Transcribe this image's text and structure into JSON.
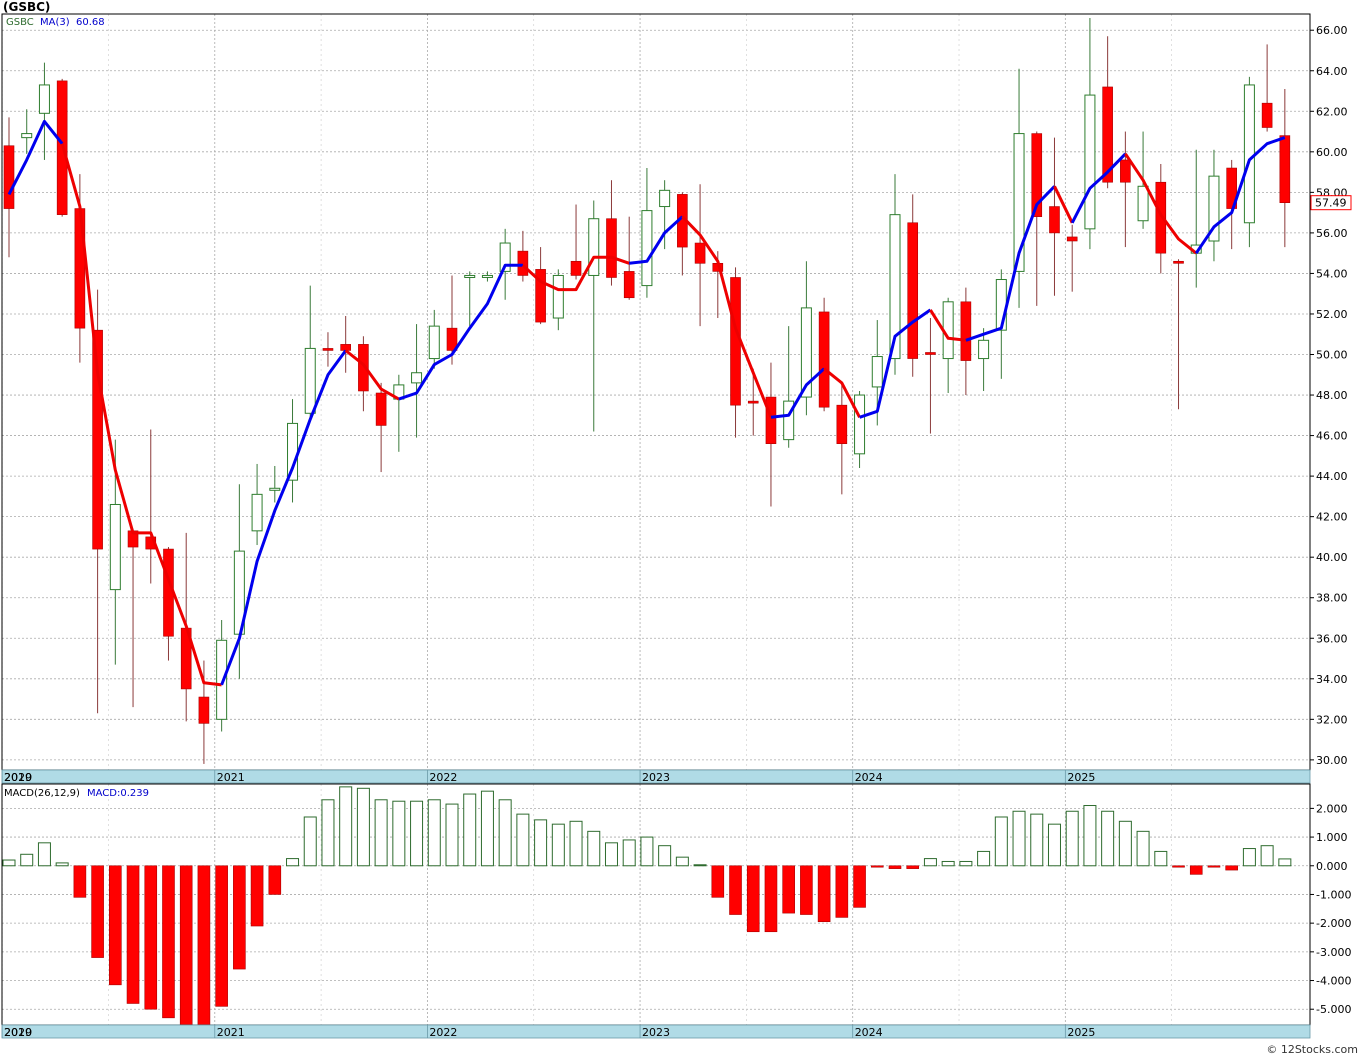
{
  "title": "(GSBC)",
  "credit": "© 12Stocks.com",
  "colors": {
    "up_candle": "#2e7d2e",
    "down_candle": "#ff0000",
    "ma_up": "#0000ee",
    "ma_down": "#ee0000",
    "hist_pos": "#2e6b2e",
    "hist_neg": "#ff0000",
    "axis_bar": "#b0dbe6",
    "grid": "#aaaaaa",
    "price_box": "#ff0000"
  },
  "chart_data": [
    {
      "type": "candlestick",
      "symbol_label": "GSBC",
      "ma_label": "MA(3)",
      "ma_value": "60.68",
      "last_price": "57.49",
      "timeframe": "monthly",
      "ylim": [
        29.5,
        66.8
      ],
      "y_ticks": [
        "66.00",
        "64.00",
        "62.00",
        "60.00",
        "58.00",
        "56.00",
        "54.00",
        "52.00",
        "50.00",
        "48.00",
        "46.00",
        "44.00",
        "42.00",
        "40.00",
        "38.00",
        "36.00",
        "34.00",
        "32.00",
        "30.00"
      ],
      "x_labels": [
        "2019",
        "2020",
        "2021",
        "2022",
        "2023",
        "2024",
        "2025"
      ],
      "x_label_index": [
        -4.5,
        0,
        12,
        24,
        36,
        48,
        60
      ],
      "grid": true,
      "candles": [
        {
          "o": 60.3,
          "h": 61.7,
          "l": 54.8,
          "c": 57.2
        },
        {
          "o": 60.7,
          "h": 62.1,
          "l": 59.9,
          "c": 60.9
        },
        {
          "o": 61.9,
          "h": 64.4,
          "l": 59.6,
          "c": 63.3
        },
        {
          "o": 63.5,
          "h": 63.6,
          "l": 56.8,
          "c": 56.9
        },
        {
          "o": 57.2,
          "h": 58.9,
          "l": 49.6,
          "c": 51.3
        },
        {
          "o": 51.2,
          "h": 53.2,
          "l": 32.3,
          "c": 40.4
        },
        {
          "o": 38.4,
          "h": 45.8,
          "l": 34.7,
          "c": 42.6
        },
        {
          "o": 41.3,
          "h": 41.4,
          "l": 32.6,
          "c": 40.5
        },
        {
          "o": 41.0,
          "h": 46.3,
          "l": 38.7,
          "c": 40.4
        },
        {
          "o": 40.4,
          "h": 40.5,
          "l": 34.9,
          "c": 36.1
        },
        {
          "o": 36.5,
          "h": 41.2,
          "l": 31.9,
          "c": 33.5
        },
        {
          "o": 33.1,
          "h": 34.9,
          "l": 29.8,
          "c": 31.8
        },
        {
          "o": 32.0,
          "h": 36.9,
          "l": 31.4,
          "c": 35.9
        },
        {
          "o": 36.2,
          "h": 43.6,
          "l": 34.0,
          "c": 40.3
        },
        {
          "o": 41.3,
          "h": 44.6,
          "l": 40.6,
          "c": 43.1
        },
        {
          "o": 43.3,
          "h": 44.5,
          "l": 42.7,
          "c": 43.4
        },
        {
          "o": 43.8,
          "h": 47.8,
          "l": 42.7,
          "c": 46.6
        },
        {
          "o": 47.1,
          "h": 53.4,
          "l": 46.8,
          "c": 50.3
        },
        {
          "o": 50.3,
          "h": 51.1,
          "l": 49.4,
          "c": 50.2
        },
        {
          "o": 50.5,
          "h": 51.9,
          "l": 49.1,
          "c": 50.2
        },
        {
          "o": 50.5,
          "h": 50.9,
          "l": 47.2,
          "c": 48.2
        },
        {
          "o": 48.1,
          "h": 48.6,
          "l": 44.2,
          "c": 46.5
        },
        {
          "o": 47.8,
          "h": 49.0,
          "l": 45.2,
          "c": 48.5
        },
        {
          "o": 48.6,
          "h": 51.5,
          "l": 45.9,
          "c": 49.1
        },
        {
          "o": 49.8,
          "h": 52.2,
          "l": 49.3,
          "c": 51.4
        },
        {
          "o": 51.3,
          "h": 53.9,
          "l": 49.5,
          "c": 50.2
        },
        {
          "o": 53.8,
          "h": 54.1,
          "l": 51.4,
          "c": 53.9
        },
        {
          "o": 53.9,
          "h": 54.1,
          "l": 53.6,
          "c": 53.9
        },
        {
          "o": 54.1,
          "h": 56.2,
          "l": 52.7,
          "c": 55.5
        },
        {
          "o": 55.1,
          "h": 56.1,
          "l": 53.6,
          "c": 53.9
        },
        {
          "o": 54.2,
          "h": 55.3,
          "l": 51.5,
          "c": 51.6
        },
        {
          "o": 51.8,
          "h": 54.2,
          "l": 51.2,
          "c": 53.9
        },
        {
          "o": 54.6,
          "h": 57.4,
          "l": 53.7,
          "c": 53.9
        },
        {
          "o": 53.9,
          "h": 57.6,
          "l": 46.2,
          "c": 56.7
        },
        {
          "o": 56.7,
          "h": 58.6,
          "l": 53.4,
          "c": 53.8
        },
        {
          "o": 54.1,
          "h": 56.8,
          "l": 52.7,
          "c": 52.8
        },
        {
          "o": 53.4,
          "h": 59.2,
          "l": 52.8,
          "c": 57.1
        },
        {
          "o": 57.3,
          "h": 58.6,
          "l": 55.2,
          "c": 58.1
        },
        {
          "o": 57.9,
          "h": 58.0,
          "l": 53.9,
          "c": 55.3
        },
        {
          "o": 55.5,
          "h": 58.4,
          "l": 51.4,
          "c": 54.5
        },
        {
          "o": 54.5,
          "h": 55.1,
          "l": 51.8,
          "c": 54.1
        },
        {
          "o": 53.8,
          "h": 54.3,
          "l": 45.9,
          "c": 47.5
        },
        {
          "o": 47.7,
          "h": 49.3,
          "l": 46.0,
          "c": 47.6
        },
        {
          "o": 47.9,
          "h": 49.6,
          "l": 42.5,
          "c": 45.6
        },
        {
          "o": 45.8,
          "h": 51.4,
          "l": 45.4,
          "c": 47.7
        },
        {
          "o": 47.9,
          "h": 54.6,
          "l": 47.0,
          "c": 52.3
        },
        {
          "o": 52.1,
          "h": 52.8,
          "l": 47.2,
          "c": 47.4
        },
        {
          "o": 47.5,
          "h": 48.5,
          "l": 43.1,
          "c": 45.6
        },
        {
          "o": 45.1,
          "h": 48.2,
          "l": 44.4,
          "c": 48.0
        },
        {
          "o": 48.4,
          "h": 51.7,
          "l": 46.5,
          "c": 49.9
        },
        {
          "o": 49.8,
          "h": 58.9,
          "l": 49.0,
          "c": 56.9
        },
        {
          "o": 56.5,
          "h": 57.9,
          "l": 48.9,
          "c": 49.8
        },
        {
          "o": 50.1,
          "h": 51.8,
          "l": 46.1,
          "c": 50.0
        },
        {
          "o": 49.8,
          "h": 52.8,
          "l": 48.1,
          "c": 52.6
        },
        {
          "o": 52.6,
          "h": 53.3,
          "l": 48.0,
          "c": 49.7
        },
        {
          "o": 49.8,
          "h": 51.3,
          "l": 48.2,
          "c": 50.7
        },
        {
          "o": 51.2,
          "h": 54.2,
          "l": 48.8,
          "c": 53.7
        },
        {
          "o": 54.1,
          "h": 64.1,
          "l": 52.3,
          "c": 60.9
        },
        {
          "o": 60.9,
          "h": 61.0,
          "l": 52.4,
          "c": 56.8
        },
        {
          "o": 57.3,
          "h": 60.7,
          "l": 52.9,
          "c": 56.0
        },
        {
          "o": 55.8,
          "h": 56.4,
          "l": 53.1,
          "c": 55.6
        },
        {
          "o": 56.2,
          "h": 66.6,
          "l": 55.2,
          "c": 62.8
        },
        {
          "o": 63.2,
          "h": 65.7,
          "l": 58.2,
          "c": 58.5
        },
        {
          "o": 59.6,
          "h": 61.0,
          "l": 55.3,
          "c": 58.5
        },
        {
          "o": 56.6,
          "h": 61.0,
          "l": 56.2,
          "c": 58.3
        },
        {
          "o": 58.5,
          "h": 59.4,
          "l": 54.0,
          "c": 55.0
        },
        {
          "o": 54.6,
          "h": 54.7,
          "l": 47.3,
          "c": 54.5
        },
        {
          "o": 55.0,
          "h": 60.1,
          "l": 53.3,
          "c": 55.4
        },
        {
          "o": 55.6,
          "h": 60.1,
          "l": 54.6,
          "c": 58.8
        },
        {
          "o": 59.2,
          "h": 59.6,
          "l": 55.2,
          "c": 57.2
        },
        {
          "o": 56.5,
          "h": 63.7,
          "l": 55.3,
          "c": 63.3
        },
        {
          "o": 62.4,
          "h": 65.3,
          "l": 61.0,
          "c": 61.2
        },
        {
          "o": 60.8,
          "h": 63.1,
          "l": 55.3,
          "c": 57.49
        }
      ],
      "ma_segments": [
        {
          "color": "up",
          "points": [
            [
              0,
              57.9
            ],
            [
              1,
              59.6
            ],
            [
              2,
              61.5
            ],
            [
              3,
              60.4
            ]
          ]
        },
        {
          "color": "down",
          "points": [
            [
              3,
              60.4
            ],
            [
              4,
              57.3
            ],
            [
              5,
              49.1
            ],
            [
              6,
              44.3
            ],
            [
              7,
              41.2
            ],
            [
              8,
              41.2
            ],
            [
              9,
              38.9
            ],
            [
              10,
              36.6
            ],
            [
              11,
              33.8
            ],
            [
              12,
              33.7
            ]
          ]
        },
        {
          "color": "up",
          "points": [
            [
              12,
              33.7
            ],
            [
              13,
              36.0
            ],
            [
              14,
              39.8
            ],
            [
              15,
              42.3
            ],
            [
              16,
              44.4
            ],
            [
              17,
              46.8
            ],
            [
              18,
              49.0
            ],
            [
              19,
              50.2
            ]
          ]
        },
        {
          "color": "down",
          "points": [
            [
              19,
              50.2
            ],
            [
              20,
              49.5
            ],
            [
              21,
              48.3
            ],
            [
              22,
              47.8
            ]
          ]
        },
        {
          "color": "up",
          "points": [
            [
              22,
              47.8
            ],
            [
              23,
              48.1
            ],
            [
              24,
              49.5
            ],
            [
              25,
              50.0
            ],
            [
              26,
              51.3
            ],
            [
              27,
              52.5
            ],
            [
              28,
              54.4
            ],
            [
              29,
              54.4
            ]
          ]
        },
        {
          "color": "down",
          "points": [
            [
              29,
              54.4
            ],
            [
              30,
              53.6
            ],
            [
              31,
              53.2
            ],
            [
              32,
              53.2
            ],
            [
              33,
              54.8
            ],
            [
              34,
              54.8
            ],
            [
              35,
              54.5
            ]
          ]
        },
        {
          "color": "up",
          "points": [
            [
              35,
              54.5
            ],
            [
              36,
              54.6
            ],
            [
              37,
              56.0
            ],
            [
              38,
              56.8
            ]
          ]
        },
        {
          "color": "down",
          "points": [
            [
              38,
              56.8
            ],
            [
              39,
              55.9
            ],
            [
              40,
              54.6
            ],
            [
              41,
              51.3
            ],
            [
              42,
              49.1
            ],
            [
              43,
              46.9
            ]
          ]
        },
        {
          "color": "up",
          "points": [
            [
              43,
              46.9
            ],
            [
              44,
              47.0
            ],
            [
              45,
              48.5
            ],
            [
              46,
              49.3
            ]
          ]
        },
        {
          "color": "down",
          "points": [
            [
              46,
              49.3
            ],
            [
              47,
              48.6
            ],
            [
              48,
              46.9
            ]
          ]
        },
        {
          "color": "up",
          "points": [
            [
              48,
              46.9
            ],
            [
              49,
              47.2
            ],
            [
              50,
              50.9
            ],
            [
              51,
              51.6
            ],
            [
              52,
              52.2
            ]
          ]
        },
        {
          "color": "down",
          "points": [
            [
              52,
              52.2
            ],
            [
              53,
              50.8
            ],
            [
              54,
              50.7
            ]
          ]
        },
        {
          "color": "up",
          "points": [
            [
              54,
              50.7
            ],
            [
              55,
              51.0
            ],
            [
              56,
              51.3
            ],
            [
              57,
              55.0
            ],
            [
              58,
              57.4
            ],
            [
              59,
              58.3
            ]
          ]
        },
        {
          "color": "down",
          "points": [
            [
              59,
              58.3
            ],
            [
              60,
              56.5
            ]
          ]
        },
        {
          "color": "up",
          "points": [
            [
              60,
              56.5
            ],
            [
              61,
              58.2
            ],
            [
              62,
              59.0
            ],
            [
              63,
              59.9
            ]
          ]
        },
        {
          "color": "down",
          "points": [
            [
              63,
              59.9
            ],
            [
              64,
              58.6
            ],
            [
              65,
              56.9
            ],
            [
              66,
              55.7
            ],
            [
              67,
              55.0
            ]
          ]
        },
        {
          "color": "up",
          "points": [
            [
              67,
              55.0
            ],
            [
              68,
              56.3
            ],
            [
              69,
              57.0
            ],
            [
              70,
              59.6
            ],
            [
              71,
              60.4
            ],
            [
              72,
              60.7
            ]
          ]
        }
      ]
    },
    {
      "type": "bar",
      "label": "MACD(26,12,9)",
      "macd_label": "MACD:0.239",
      "ylim": [
        -5.55,
        2.85
      ],
      "y_ticks": [
        "2.000",
        "1.000",
        "0.000",
        "-1.000",
        "-2.000",
        "-3.000",
        "-4.000",
        "-5.000"
      ],
      "x_labels": [
        "2019",
        "2020",
        "2021",
        "2022",
        "2023",
        "2024",
        "2025"
      ],
      "values": [
        0.2,
        0.4,
        0.8,
        0.1,
        -1.1,
        -3.2,
        -4.15,
        -4.8,
        -5.0,
        -5.3,
        -5.75,
        -5.85,
        -4.9,
        -3.6,
        -2.1,
        -1.0,
        0.25,
        1.7,
        2.3,
        2.75,
        2.7,
        2.3,
        2.25,
        2.25,
        2.3,
        2.15,
        2.5,
        2.6,
        2.3,
        1.8,
        1.6,
        1.45,
        1.55,
        1.2,
        0.8,
        0.9,
        1.0,
        0.7,
        0.3,
        0.0,
        -1.1,
        -1.7,
        -2.3,
        -2.3,
        -1.65,
        -1.7,
        -1.95,
        -1.8,
        -1.45,
        -0.05,
        -0.1,
        -0.1,
        0.25,
        0.15,
        0.15,
        0.5,
        1.7,
        1.9,
        1.8,
        1.45,
        1.9,
        2.1,
        1.9,
        1.55,
        1.2,
        0.5,
        -0.05,
        -0.3,
        -0.05,
        -0.15,
        0.6,
        0.7,
        0.239
      ]
    }
  ]
}
